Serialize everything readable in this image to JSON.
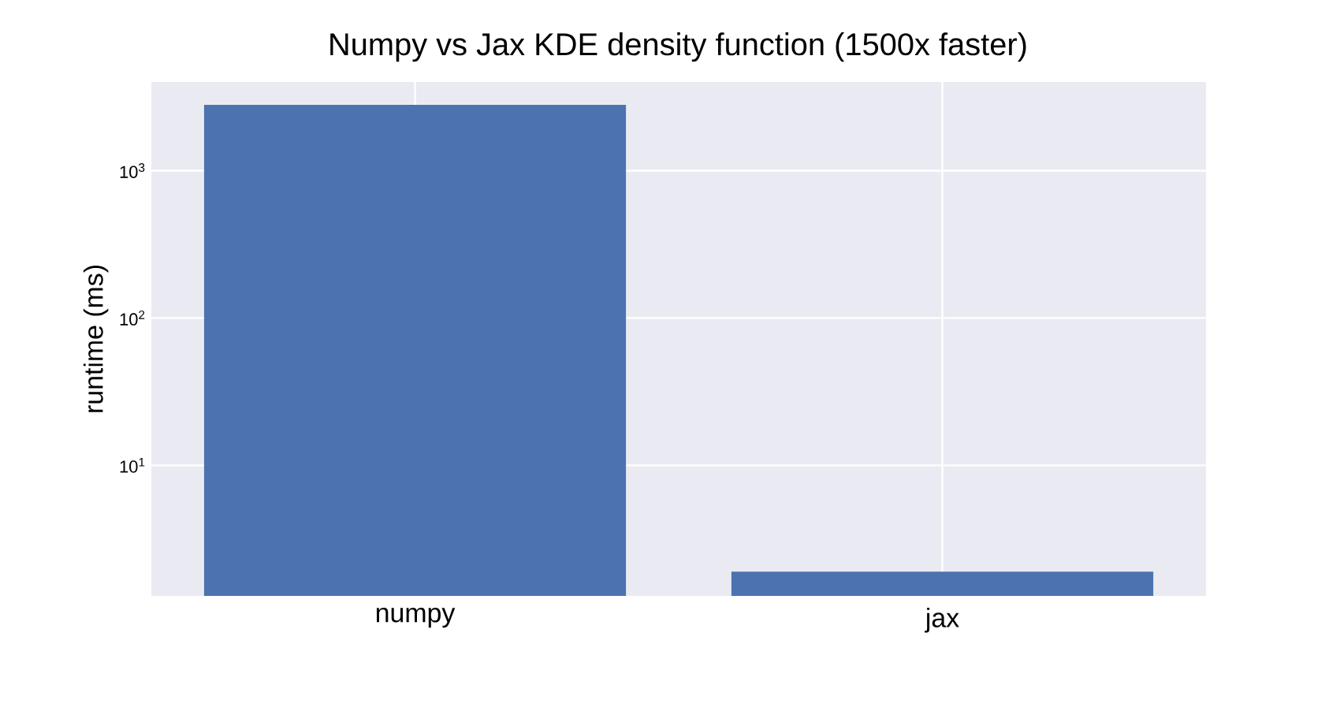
{
  "chart_data": {
    "type": "bar",
    "title": "Numpy vs Jax KDE density function (1500x faster)",
    "ylabel": "runtime (ms)",
    "categories": [
      "numpy",
      "jax"
    ],
    "values": [
      2800,
      1.9
    ],
    "color": "#4c72b0",
    "log": true,
    "ylim": [
      1.3,
      4000
    ],
    "yticks": [
      {
        "value": 10,
        "label": "10$^{1}$"
      },
      {
        "value": 100,
        "label": "10$^{2}$"
      },
      {
        "value": 1000,
        "label": "10$^{3}$"
      }
    ],
    "grid": true
  }
}
